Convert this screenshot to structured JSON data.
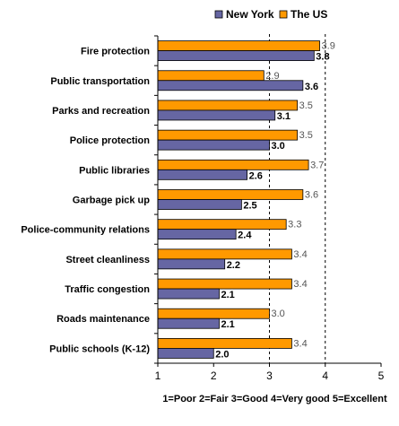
{
  "chart_data": {
    "type": "bar",
    "orientation": "horizontal",
    "categories": [
      "Fire protection",
      "Public transportation",
      "Parks and recreation",
      "Police protection",
      "Public libraries",
      "Garbage pick up",
      "Police-community relations",
      "Street cleanliness",
      "Traffic congestion",
      "Roads maintenance",
      "Public schools (K-12)"
    ],
    "series": [
      {
        "name": "The US",
        "color": "#ff9900",
        "values": [
          3.9,
          2.9,
          3.5,
          3.5,
          3.7,
          3.6,
          3.3,
          3.4,
          3.4,
          3.0,
          3.4
        ],
        "labels": [
          "3.9",
          "2.9",
          "3.5",
          "3.5",
          "3.7",
          "3.6",
          "3.3",
          "3.4",
          "3.4",
          "3.0",
          "3.4"
        ]
      },
      {
        "name": "New York",
        "color": "#6666a3",
        "values": [
          3.8,
          3.6,
          3.1,
          3.0,
          2.6,
          2.5,
          2.4,
          2.2,
          2.1,
          2.1,
          2.0
        ],
        "labels": [
          "3.8",
          "3.6",
          "3.1",
          "3.0",
          "2.6",
          "2.5",
          "2.4",
          "2.2",
          "2.1",
          "2.1",
          "2.0"
        ]
      }
    ],
    "legend_order": [
      "New York",
      "The US"
    ],
    "legend_position": "top-right",
    "xlim": [
      1,
      5
    ],
    "xticks": [
      "1",
      "2",
      "3",
      "4",
      "5"
    ],
    "dashed_gridlines": [
      3,
      4
    ],
    "scale_note": "1=Poor  2=Fair  3=Good  4=Very good  5=Excellent"
  }
}
